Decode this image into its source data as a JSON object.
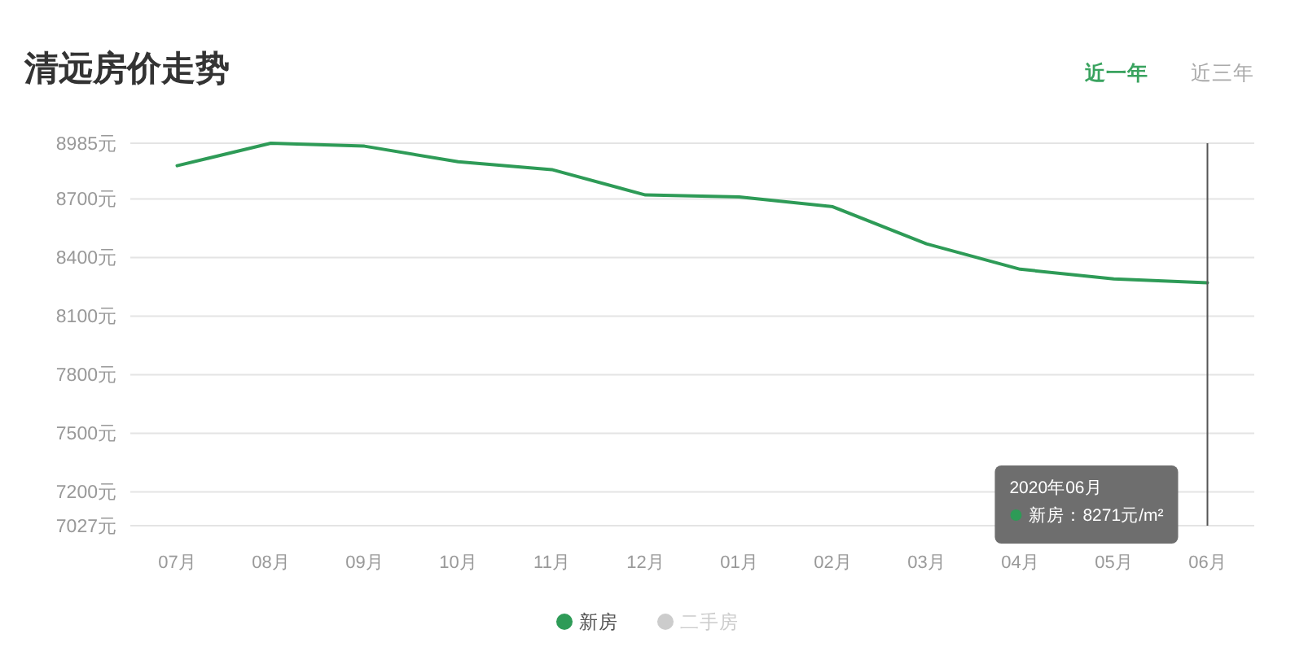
{
  "chart_data": {
    "type": "line",
    "title": "清远房价走势",
    "categories": [
      "07月",
      "08月",
      "09月",
      "10月",
      "11月",
      "12月",
      "01月",
      "02月",
      "03月",
      "04月",
      "05月",
      "06月"
    ],
    "series": [
      {
        "name": "新房",
        "color": "#2e9b57",
        "values": [
          8870,
          8985,
          8970,
          8890,
          8850,
          8720,
          8710,
          8660,
          8470,
          8340,
          8290,
          8271
        ]
      },
      {
        "name": "二手房",
        "color": "#cccccc",
        "values": [
          null,
          null,
          null,
          null,
          null,
          null,
          null,
          null,
          null,
          null,
          null,
          null
        ]
      }
    ],
    "ylim": [
      7027,
      8985
    ],
    "yticks": [
      {
        "value": 7027,
        "label": "7027元"
      },
      {
        "value": 7200,
        "label": "7200元"
      },
      {
        "value": 7500,
        "label": "7500元"
      },
      {
        "value": 7800,
        "label": "7800元"
      },
      {
        "value": 8100,
        "label": "8100元"
      },
      {
        "value": 8400,
        "label": "8400元"
      },
      {
        "value": 8700,
        "label": "8700元"
      },
      {
        "value": 8985,
        "label": "8985元"
      }
    ],
    "grid": "y",
    "legend": "bottom",
    "ref_lines": [
      {
        "axis": "x",
        "value": "06月",
        "color": "#555555"
      }
    ],
    "annotations": [
      "近一年",
      "近三年",
      "2020年06月",
      "新房：8271元/m²"
    ]
  }
}
